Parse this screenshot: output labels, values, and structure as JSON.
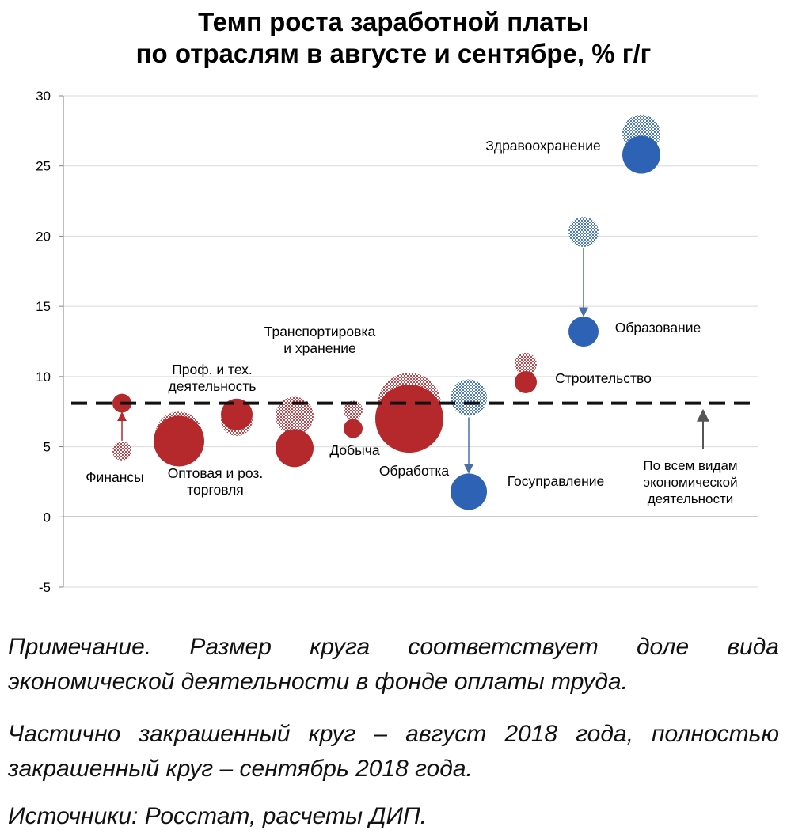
{
  "title_line1": "Темп роста заработной платы",
  "title_line2": "по отраслям в августе и сентябре, % г/г",
  "notes": {
    "note1": "Примечание. Размер круга соответствует доле вида экономической деятельности в фонде оплаты труда.",
    "note2": "Частично закрашенный круг – август 2018 года, полностью закрашенный круг – сентябрь 2018 года.",
    "note3": "Источники: Росстат, расчеты ДИП."
  },
  "colors": {
    "red": "#b5282c",
    "blue": "#2e62b5",
    "grid": "#d9d9d9",
    "axis": "#7f7f7f",
    "arrow": "#4a6fa5"
  },
  "chart_data": {
    "type": "bubble",
    "ylim": [
      -5,
      30
    ],
    "yticks": [
      30,
      25,
      20,
      15,
      10,
      5,
      0,
      -5
    ],
    "grid": true,
    "reference_line": {
      "value": 8.1,
      "label_lines": [
        "По всем видам",
        "экономической",
        "деятельности"
      ]
    },
    "series": [
      {
        "label_lines": [
          "Финансы"
        ],
        "color": "red",
        "august": 4.7,
        "september": 8.1,
        "size_aug": 12,
        "size_sep": 12
      },
      {
        "label_lines": [
          "Оптовая и роз.",
          "торговля"
        ],
        "color": "red",
        "august": 5.8,
        "september": 5.4,
        "size_aug": 30,
        "size_sep": 32
      },
      {
        "label_lines": [
          "Проф. и тех.",
          "деятельность"
        ],
        "color": "red",
        "august": 6.9,
        "september": 7.3,
        "size_aug": 20,
        "size_sep": 20
      },
      {
        "label_lines": [
          "Транспортировка",
          "и хранение"
        ],
        "color": "red",
        "august": 7.2,
        "september": 4.9,
        "size_aug": 24,
        "size_sep": 24
      },
      {
        "label_lines": [
          "Добыча"
        ],
        "color": "red",
        "august": 7.6,
        "september": 6.3,
        "size_aug": 12,
        "size_sep": 12
      },
      {
        "label_lines": [
          "Обработка"
        ],
        "color": "red",
        "august": 8.0,
        "september": 7.0,
        "size_aug": 40,
        "size_sep": 43
      },
      {
        "label_lines": [
          "Госуправление"
        ],
        "color": "blue",
        "august": 8.5,
        "september": 1.8,
        "size_aug": 23,
        "size_sep": 23
      },
      {
        "label_lines": [
          "Строительство"
        ],
        "color": "red",
        "august": 10.9,
        "september": 9.6,
        "size_aug": 14,
        "size_sep": 14
      },
      {
        "label_lines": [
          "Образование"
        ],
        "color": "blue",
        "august": 20.3,
        "september": 13.2,
        "size_aug": 19,
        "size_sep": 19
      },
      {
        "label_lines": [
          "Здравоохранение"
        ],
        "color": "blue",
        "august": 27.3,
        "september": 25.8,
        "size_aug": 24,
        "size_sep": 24
      }
    ]
  }
}
